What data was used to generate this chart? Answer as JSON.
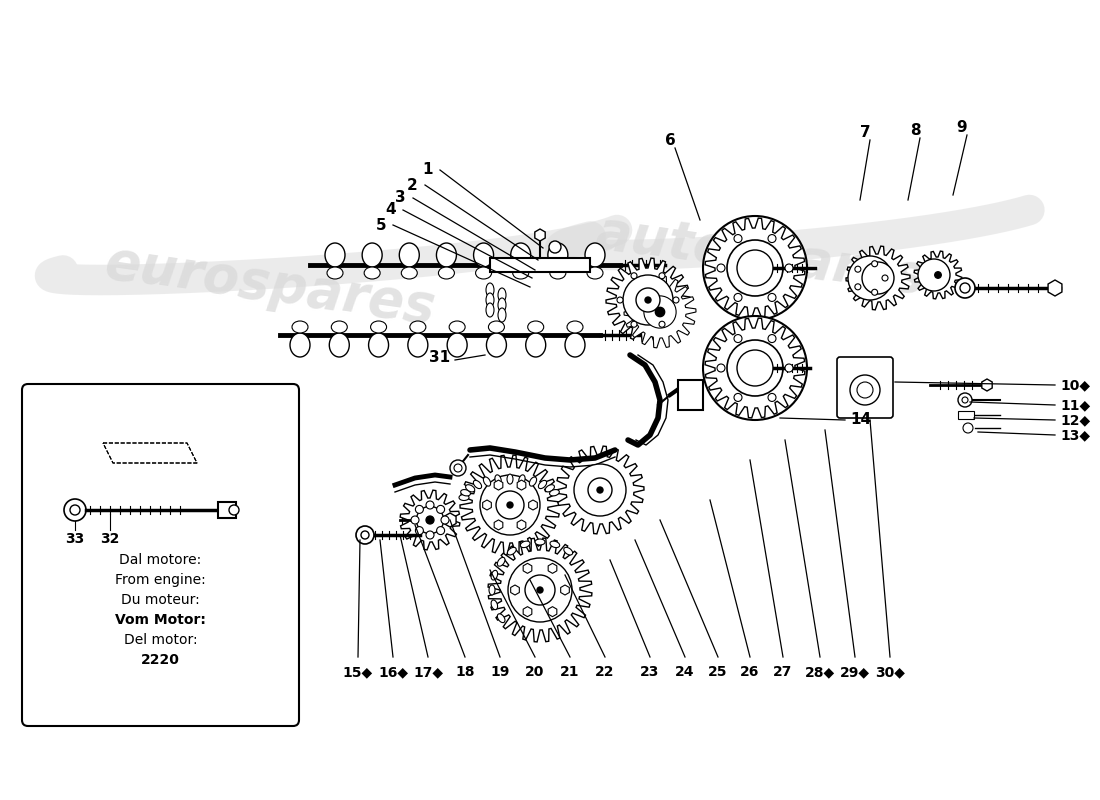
{
  "bg_color": "#ffffff",
  "line_color": "#000000",
  "text_color": "#000000",
  "watermark_color": [
    0.82,
    0.82,
    0.82
  ],
  "watermark_alpha": 0.6,
  "box_text_lines": [
    "Dal motore:",
    "From engine:",
    "Du moteur:",
    "Vom Motor:",
    "Del motor:",
    "2220"
  ],
  "box_text_bold": [
    false,
    false,
    false,
    true,
    false,
    true
  ],
  "callout_labels_inset": [
    "33",
    "32"
  ],
  "callout_label_31": "31",
  "callout_label_14": "14",
  "label_top": [
    "1",
    "2",
    "3",
    "4",
    "5"
  ],
  "label_top_right": [
    "6",
    "7",
    "8",
    "9"
  ],
  "label_right": [
    "10◆",
    "11◆",
    "12◆",
    "13◆"
  ],
  "label_bottom": [
    "15◆",
    "16◆",
    "17◆",
    "18",
    "19",
    "20",
    "21",
    "22",
    "23",
    "24",
    "25",
    "26",
    "27",
    "28◆",
    "29◆",
    "30◆"
  ],
  "font_size": 10,
  "font_size_wm": 38,
  "font_size_box": 10
}
